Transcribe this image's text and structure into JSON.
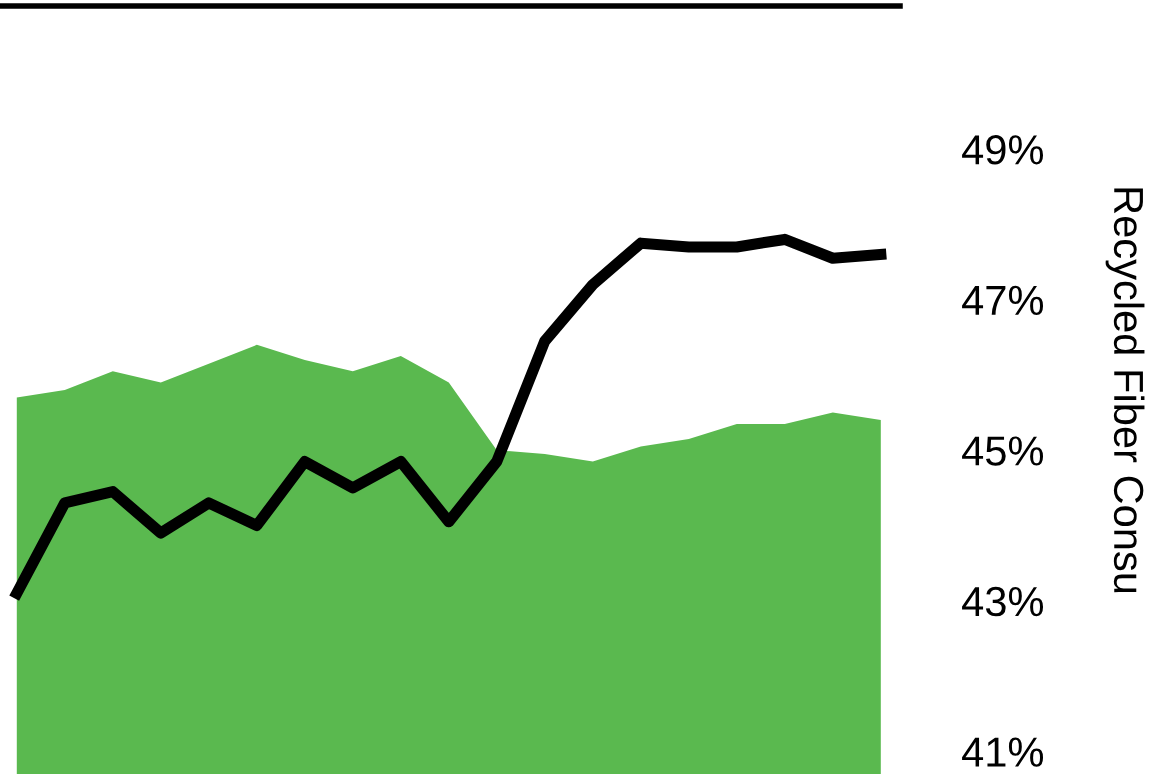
{
  "chart_data": {
    "type": "line",
    "y2label": "Recycled Fiber Consu",
    "categories": [
      null,
      null,
      null,
      null,
      null,
      null,
      null,
      null,
      null,
      null,
      null,
      null,
      null,
      null,
      null,
      null,
      null,
      null,
      null
    ],
    "ylim": [
      40.7,
      50.9
    ],
    "yticks": [
      {
        "value": 41,
        "label": "41%"
      },
      {
        "value": 43,
        "label": "43%"
      },
      {
        "value": 45,
        "label": "45%"
      },
      {
        "value": 47,
        "label": "47%"
      },
      {
        "value": 49,
        "label": "49%"
      }
    ],
    "tick_labels": "y",
    "series": [
      {
        "type": "area",
        "color": "#5ab94f",
        "values": [
          45.7,
          45.8,
          46.05,
          45.9,
          46.15,
          46.4,
          46.2,
          46.05,
          46.25,
          45.9,
          45.0,
          44.95,
          44.85,
          45.05,
          45.15,
          45.35,
          45.35,
          45.5,
          45.4
        ]
      },
      {
        "color": "#000000",
        "values": [
          43.1,
          44.3,
          44.45,
          43.9,
          44.3,
          44.0,
          44.85,
          44.5,
          44.85,
          44.05,
          44.85,
          46.45,
          47.2,
          47.75,
          47.7,
          47.7,
          47.8,
          47.55,
          47.6
        ]
      }
    ]
  }
}
